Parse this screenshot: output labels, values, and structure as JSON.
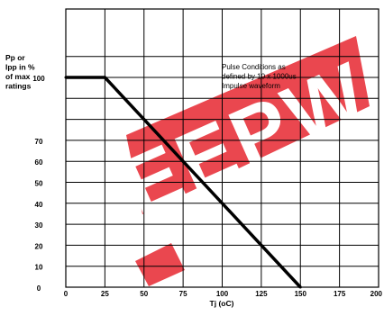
{
  "chart_data": {
    "type": "line",
    "xlabel": "Tj (oC)",
    "ylabel_lines": [
      "Pp or",
      "Ipp in %",
      "of max",
      "ratings"
    ],
    "x_ticks": [
      0,
      25,
      50,
      75,
      100,
      125,
      150,
      175,
      200
    ],
    "y_ticks": [
      0,
      10,
      20,
      30,
      40,
      50,
      60,
      70,
      100
    ],
    "xlim": [
      0,
      200
    ],
    "y_grid": [
      0,
      10,
      20,
      30,
      40,
      50,
      60,
      70,
      80,
      90,
      100,
      110
    ],
    "grid": true,
    "series": [
      {
        "x": [
          0,
          25,
          150
        ],
        "y": [
          100,
          100,
          0
        ]
      }
    ],
    "annotation_lines": [
      "Pulse Conditions as",
      "defined by 10 x 1000us",
      "Impulse waveform"
    ],
    "watermark": "EEPW",
    "colors": {
      "line": "#000000",
      "grid": "#000000",
      "watermark": "#e8343c"
    }
  }
}
